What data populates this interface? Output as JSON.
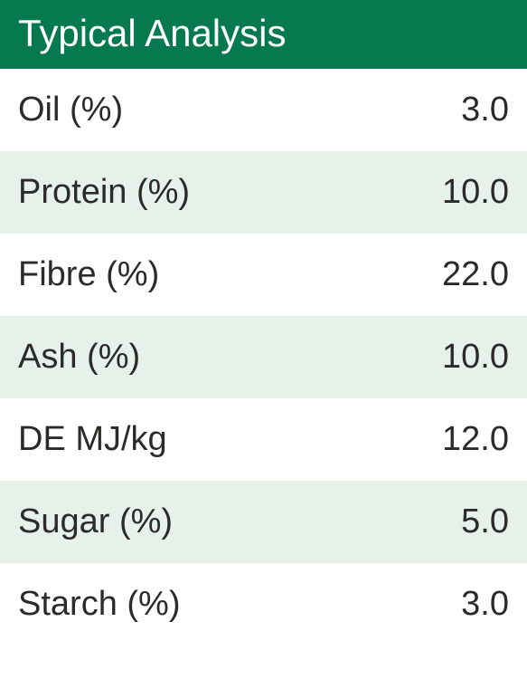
{
  "header": {
    "title": "Typical Analysis",
    "background_color": "#07794e",
    "text_color": "#ffffff"
  },
  "rows": [
    {
      "label": "Oil (%)",
      "value": "3.0"
    },
    {
      "label": "Protein (%)",
      "value": "10.0"
    },
    {
      "label": "Fibre (%)",
      "value": "22.0"
    },
    {
      "label": "Ash (%)",
      "value": "10.0"
    },
    {
      "label": "DE MJ/kg",
      "value": "12.0"
    },
    {
      "label": "Sugar (%)",
      "value": "5.0"
    },
    {
      "label": "Starch (%)",
      "value": "3.0"
    }
  ],
  "row_colors": {
    "odd": "#ffffff",
    "even": "#e6f1ea"
  },
  "text_color": "#2b2c29",
  "row_fontsize": 38,
  "header_fontsize": 42
}
